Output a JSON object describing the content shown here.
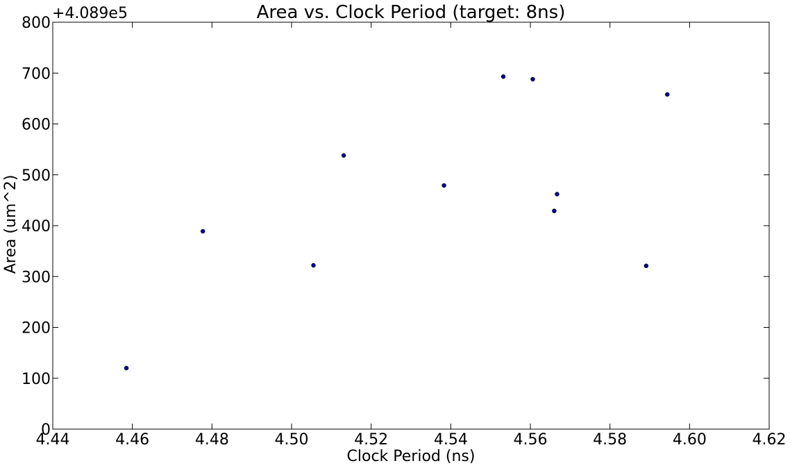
{
  "chart_data": {
    "type": "scatter",
    "title": "Area vs. Clock Period (target: 8ns)",
    "xlabel": "Clock Period (ns)",
    "ylabel": "Area (um^2)",
    "y_offset_label": "+4.089e5",
    "xlim": [
      4.44,
      4.62
    ],
    "ylim": [
      0,
      800
    ],
    "x_ticks": [
      "4.44",
      "4.46",
      "4.48",
      "4.50",
      "4.52",
      "4.54",
      "4.56",
      "4.58",
      "4.60",
      "4.62"
    ],
    "y_ticks": [
      "0",
      "100",
      "200",
      "300",
      "400",
      "500",
      "600",
      "700",
      "800"
    ],
    "grid": false,
    "marker_color": "#00008b",
    "points": [
      {
        "x": 4.4585,
        "y": 120
      },
      {
        "x": 4.4777,
        "y": 389
      },
      {
        "x": 4.5055,
        "y": 322
      },
      {
        "x": 4.5131,
        "y": 538
      },
      {
        "x": 4.5383,
        "y": 479
      },
      {
        "x": 4.5532,
        "y": 693
      },
      {
        "x": 4.5606,
        "y": 688
      },
      {
        "x": 4.566,
        "y": 429
      },
      {
        "x": 4.5667,
        "y": 462
      },
      {
        "x": 4.5891,
        "y": 321
      },
      {
        "x": 4.5944,
        "y": 658
      }
    ]
  }
}
